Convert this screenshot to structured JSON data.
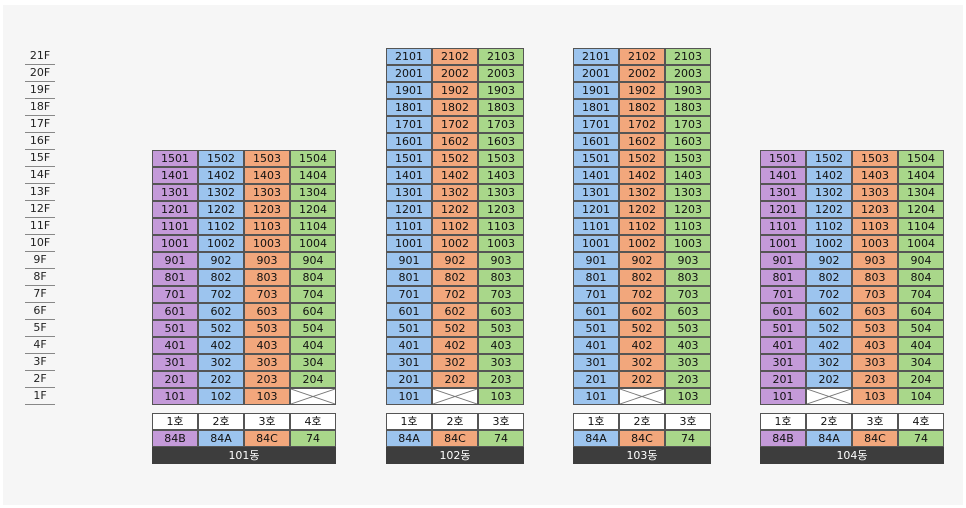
{
  "colors": {
    "84B": "#c49ad9",
    "84A": "#9cc4ee",
    "84C": "#f2a77c",
    "74": "#a9d78a",
    "ho_bg": "#ffffff",
    "name_bg": "#3d3d3d"
  },
  "floors": [
    "21F",
    "20F",
    "19F",
    "18F",
    "17F",
    "16F",
    "15F",
    "14F",
    "13F",
    "12F",
    "11F",
    "10F",
    "9F",
    "8F",
    "7F",
    "6F",
    "5F",
    "4F",
    "3F",
    "2F",
    "1F"
  ],
  "buildings": [
    {
      "name": "101동",
      "top_floor": 15,
      "columns": [
        {
          "ho": "1호",
          "type": "84B",
          "empty_floors": []
        },
        {
          "ho": "2호",
          "type": "84A",
          "empty_floors": []
        },
        {
          "ho": "3호",
          "type": "84C",
          "empty_floors": []
        },
        {
          "ho": "4호",
          "type": "74",
          "empty_floors": [
            1
          ]
        }
      ]
    },
    {
      "name": "102동",
      "top_floor": 21,
      "columns": [
        {
          "ho": "1호",
          "type": "84A",
          "empty_floors": []
        },
        {
          "ho": "2호",
          "type": "84C",
          "empty_floors": [
            1
          ]
        },
        {
          "ho": "3호",
          "type": "74",
          "empty_floors": []
        }
      ]
    },
    {
      "name": "103동",
      "top_floor": 21,
      "columns": [
        {
          "ho": "1호",
          "type": "84A",
          "empty_floors": []
        },
        {
          "ho": "2호",
          "type": "84C",
          "empty_floors": [
            1
          ]
        },
        {
          "ho": "3호",
          "type": "74",
          "empty_floors": []
        }
      ]
    },
    {
      "name": "104동",
      "top_floor": 15,
      "columns": [
        {
          "ho": "1호",
          "type": "84B",
          "empty_floors": []
        },
        {
          "ho": "2호",
          "type": "84A",
          "empty_floors": [
            1
          ]
        },
        {
          "ho": "3호",
          "type": "84C",
          "empty_floors": []
        },
        {
          "ho": "4호",
          "type": "74",
          "empty_floors": []
        }
      ]
    }
  ]
}
